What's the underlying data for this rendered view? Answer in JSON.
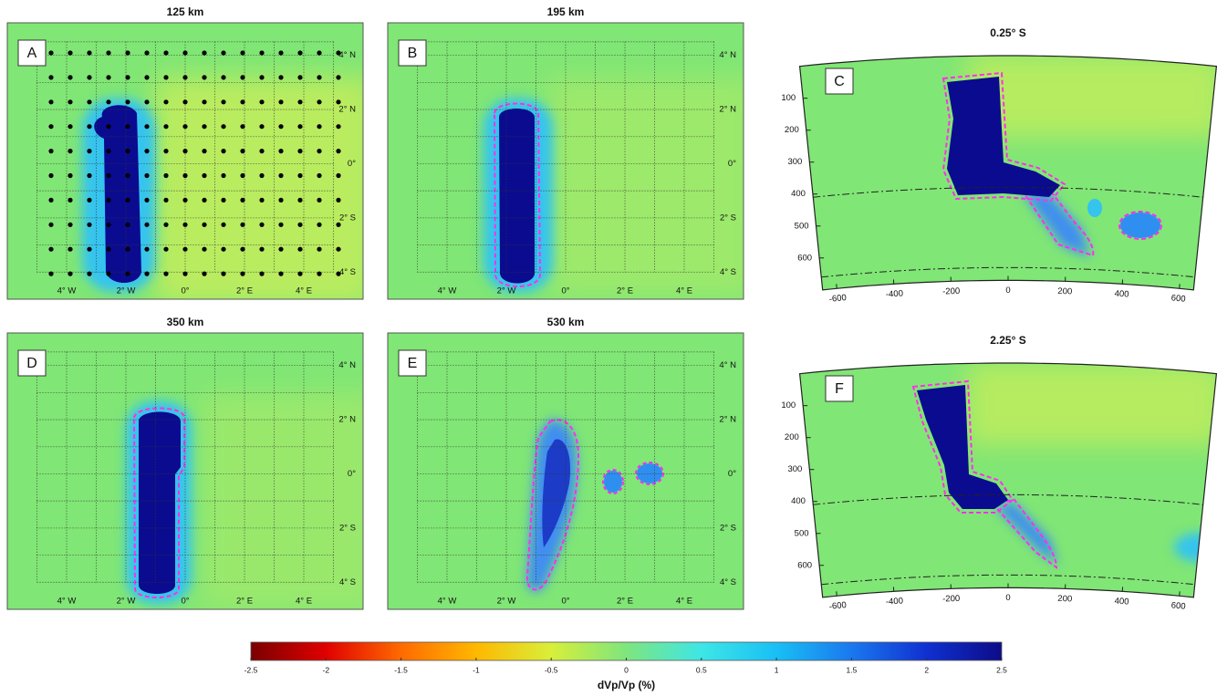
{
  "chart_data": [
    {
      "type": "map",
      "panel": "A",
      "title": "125 km",
      "xlim": [
        -6,
        6
      ],
      "ylim": [
        -5,
        5.2
      ],
      "xticks": [
        {
          "value": -4,
          "label": "4° W"
        },
        {
          "value": -2,
          "label": "2° W"
        },
        {
          "value": 0,
          "label": "0°"
        },
        {
          "value": 2,
          "label": "2° E"
        },
        {
          "value": 4,
          "label": "4° E"
        }
      ],
      "yticks": [
        {
          "value": 4,
          "label": "4° N"
        },
        {
          "value": 2,
          "label": "2° N"
        },
        {
          "value": 0,
          "label": "0°"
        },
        {
          "value": -2,
          "label": "2° S"
        },
        {
          "value": -4,
          "label": "4° S"
        }
      ]
    },
    {
      "type": "map",
      "panel": "B",
      "title": "195 km",
      "xlim": [
        -6,
        6
      ],
      "ylim": [
        -5,
        5.2
      ],
      "xticks": [
        {
          "value": -4,
          "label": "4° W"
        },
        {
          "value": -2,
          "label": "2° W"
        },
        {
          "value": 0,
          "label": "0°"
        },
        {
          "value": 2,
          "label": "2° E"
        },
        {
          "value": 4,
          "label": "4° E"
        }
      ],
      "yticks": [
        {
          "value": 4,
          "label": "4° N"
        },
        {
          "value": 2,
          "label": "2° N"
        },
        {
          "value": 0,
          "label": "0°"
        },
        {
          "value": -2,
          "label": "2° S"
        },
        {
          "value": -4,
          "label": "4° S"
        }
      ]
    },
    {
      "type": "section",
      "panel": "C",
      "title": "0.25° S",
      "xlim": [
        -650,
        650
      ],
      "ylim": [
        0,
        700
      ],
      "xticks": [
        -600,
        -400,
        -200,
        0,
        200,
        400,
        600
      ],
      "yticks": [
        100,
        200,
        300,
        400,
        500,
        600
      ]
    },
    {
      "type": "map",
      "panel": "D",
      "title": "350 km",
      "xlim": [
        -6,
        6
      ],
      "ylim": [
        -5,
        5.2
      ],
      "xticks": [
        {
          "value": -4,
          "label": "4° W"
        },
        {
          "value": -2,
          "label": "2° W"
        },
        {
          "value": 0,
          "label": "0°"
        },
        {
          "value": 2,
          "label": "2° E"
        },
        {
          "value": 4,
          "label": "4° E"
        }
      ],
      "yticks": [
        {
          "value": 4,
          "label": "4° N"
        },
        {
          "value": 2,
          "label": "2° N"
        },
        {
          "value": 0,
          "label": "0°"
        },
        {
          "value": -2,
          "label": "2° S"
        },
        {
          "value": -4,
          "label": "4° S"
        }
      ]
    },
    {
      "type": "map",
      "panel": "E",
      "title": "530 km",
      "xlim": [
        -6,
        6
      ],
      "ylim": [
        -5,
        5.2
      ],
      "xticks": [
        {
          "value": -4,
          "label": "4° W"
        },
        {
          "value": -2,
          "label": "2° W"
        },
        {
          "value": 0,
          "label": "0°"
        },
        {
          "value": 2,
          "label": "2° E"
        },
        {
          "value": 4,
          "label": "4° E"
        }
      ],
      "yticks": [
        {
          "value": 4,
          "label": "4° N"
        },
        {
          "value": 2,
          "label": "2° N"
        },
        {
          "value": 0,
          "label": "0°"
        },
        {
          "value": -2,
          "label": "2° S"
        },
        {
          "value": -4,
          "label": "4° S"
        }
      ]
    },
    {
      "type": "section",
      "panel": "F",
      "title": "2.25° S",
      "xlim": [
        -650,
        650
      ],
      "ylim": [
        0,
        700
      ],
      "xticks": [
        -600,
        -400,
        -200,
        0,
        200,
        400,
        600
      ],
      "yticks": [
        100,
        200,
        300,
        400,
        500,
        600
      ]
    },
    {
      "type": "colorbar",
      "xlabel": "dVp/Vp (%)",
      "xlim": [
        -2.5,
        2.5
      ],
      "xticks": [
        -2.5,
        -2,
        -1.5,
        -1,
        -0.5,
        0,
        0.5,
        1,
        1.5,
        2,
        2.5
      ]
    }
  ]
}
